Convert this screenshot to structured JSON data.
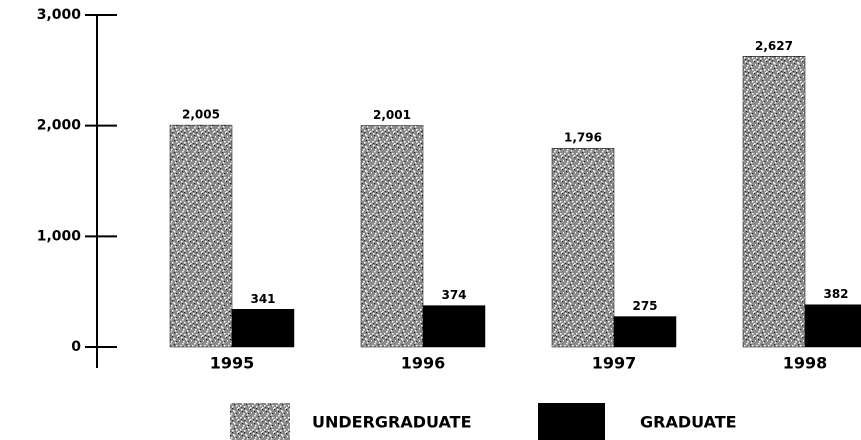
{
  "chart_data": {
    "type": "bar",
    "categories": [
      "1995",
      "1996",
      "1997",
      "1998"
    ],
    "series": [
      {
        "name": "UNDERGRADUATE",
        "color": "#8a8a8a",
        "values": [
          2005,
          2001,
          1796,
          2627
        ],
        "value_labels": [
          "2,005",
          "2,001",
          "1,796",
          "2,627"
        ]
      },
      {
        "name": "GRADUATE",
        "color": "#000000",
        "values": [
          341,
          374,
          275,
          382
        ]
      }
    ],
    "ylim": [
      0,
      3000
    ],
    "yticks": [
      0,
      {
        "value": 1000,
        "label": "1,000"
      },
      {
        "value": 2000,
        "label": "2,000"
      },
      {
        "value": 3000,
        "label": "3,000"
      }
    ],
    "legend": "bottom"
  }
}
